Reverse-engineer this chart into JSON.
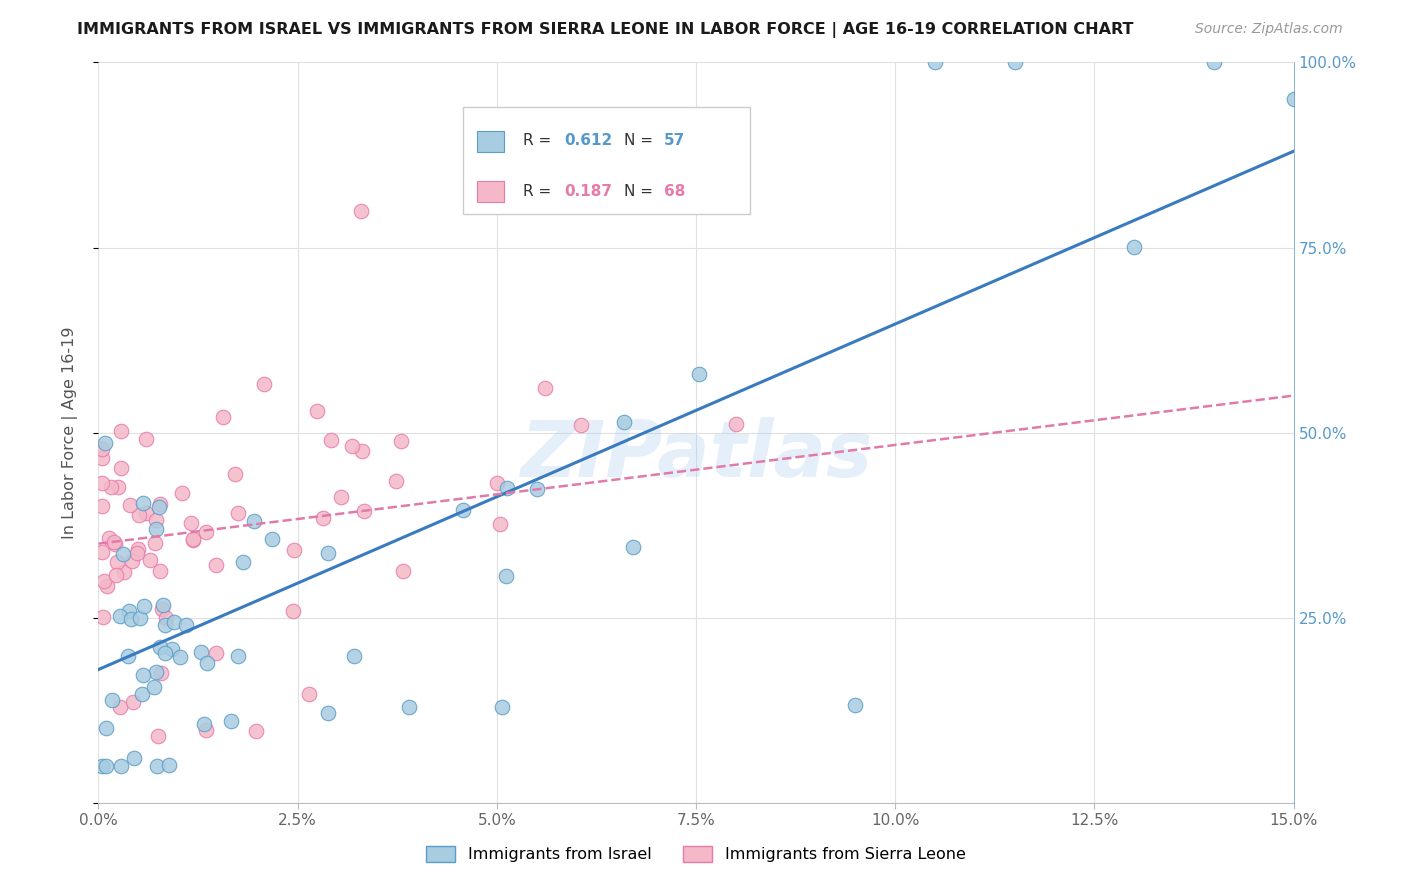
{
  "title": "IMMIGRANTS FROM ISRAEL VS IMMIGRANTS FROM SIERRA LEONE IN LABOR FORCE | AGE 16-19 CORRELATION CHART",
  "source": "Source: ZipAtlas.com",
  "ylabel": "In Labor Force | Age 16-19",
  "legend_israel_r": "R = 0.612",
  "legend_israel_n": "N = 57",
  "legend_sierra_r": "R = 0.187",
  "legend_sierra_n": "N = 68",
  "legend_label_israel": "Immigrants from Israel",
  "legend_label_sierra": "Immigrants from Sierra Leone",
  "color_israel": "#a8cce0",
  "color_sierra": "#f4b8c8",
  "color_israel_edge": "#5a9dc8",
  "color_sierra_edge": "#e87aaa",
  "color_israel_line": "#3a7bbf",
  "color_sierra_line": "#e07aaa",
  "watermark": "ZIPatlas",
  "background_color": "#ffffff",
  "x_min": 0.0,
  "x_max": 0.15,
  "y_min": 0.0,
  "y_max": 1.0,
  "grid_color": "#e0e0e0",
  "right_tick_color": "#5599cc",
  "x_ticks": [
    0.0,
    0.025,
    0.05,
    0.075,
    0.1,
    0.125,
    0.15
  ],
  "x_tick_labels": [
    "0.0%",
    "2.5%",
    "5.0%",
    "7.5%",
    "10.0%",
    "12.5%",
    "15.0%"
  ],
  "y_ticks": [
    0.0,
    0.25,
    0.5,
    0.75,
    1.0
  ],
  "y_tick_labels": [
    "",
    "25.0%",
    "50.0%",
    "75.0%",
    "100.0%"
  ],
  "isr_line_x0": 0.0,
  "isr_line_y0": 0.18,
  "isr_line_x1": 0.15,
  "isr_line_y1": 0.88,
  "sl_line_x0": 0.0,
  "sl_line_y0": 0.35,
  "sl_line_x1": 0.15,
  "sl_line_y1": 0.55
}
